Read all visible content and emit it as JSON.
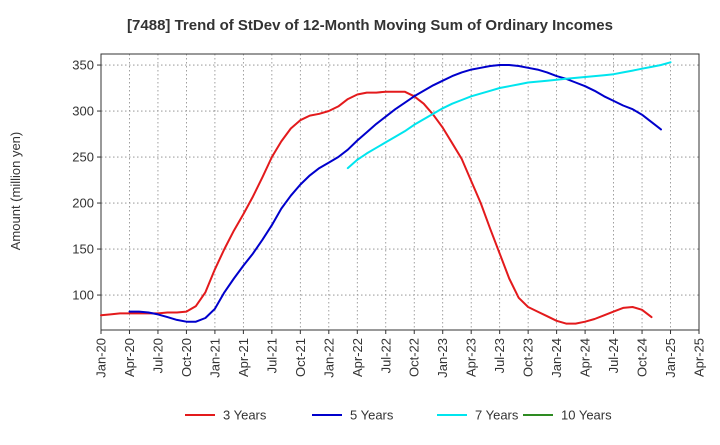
{
  "chart_data": {
    "type": "line",
    "title": "[7488]  Trend of StDev of 12-Month Moving Sum of Ordinary Incomes",
    "ylabel": "Amount (million yen)",
    "xlabel": "",
    "ylim": [
      62,
      362
    ],
    "yticks": [
      100,
      150,
      200,
      250,
      300,
      350
    ],
    "xlim": [
      "2020-01",
      "2025-04"
    ],
    "xticks": [
      "Jan-20",
      "Apr-20",
      "Jul-20",
      "Oct-20",
      "Jan-21",
      "Apr-21",
      "Jul-21",
      "Oct-21",
      "Jan-22",
      "Apr-22",
      "Jul-22",
      "Oct-22",
      "Jan-23",
      "Apr-23",
      "Jul-23",
      "Oct-23",
      "Jan-24",
      "Apr-24",
      "Jul-24",
      "Oct-24",
      "Jan-25",
      "Apr-25"
    ],
    "grid": true,
    "legend_position": "bottom",
    "series": [
      {
        "name": "3 Years",
        "color": "#e31a1c",
        "x": [
          "2020-01",
          "2020-02",
          "2020-03",
          "2020-04",
          "2020-05",
          "2020-06",
          "2020-07",
          "2020-08",
          "2020-09",
          "2020-10",
          "2020-11",
          "2020-12",
          "2021-01",
          "2021-02",
          "2021-03",
          "2021-04",
          "2021-05",
          "2021-06",
          "2021-07",
          "2021-08",
          "2021-09",
          "2021-10",
          "2021-11",
          "2021-12",
          "2022-01",
          "2022-02",
          "2022-03",
          "2022-04",
          "2022-05",
          "2022-06",
          "2022-07",
          "2022-08",
          "2022-09",
          "2022-10",
          "2022-11",
          "2022-12",
          "2023-01",
          "2023-02",
          "2023-03",
          "2023-04",
          "2023-05",
          "2023-06",
          "2023-07",
          "2023-08",
          "2023-09",
          "2023-10",
          "2023-11",
          "2023-12",
          "2024-01",
          "2024-02",
          "2024-03",
          "2024-04",
          "2024-05",
          "2024-06",
          "2024-07",
          "2024-08",
          "2024-09",
          "2024-10",
          "2024-11",
          "2024-12",
          "2025-01"
        ],
        "values": [
          78,
          79,
          80,
          80,
          80,
          80,
          80,
          81,
          81,
          82,
          88,
          103,
          128,
          150,
          170,
          188,
          207,
          228,
          250,
          267,
          281,
          290,
          295,
          297,
          300,
          305,
          313,
          318,
          320,
          320,
          321,
          321,
          321,
          316,
          308,
          296,
          282,
          265,
          248,
          224,
          200,
          172,
          145,
          118,
          97,
          87,
          82,
          77,
          72,
          69,
          69,
          71,
          74,
          78,
          82,
          86,
          87,
          84,
          76,
          null,
          null
        ],
        "values_note": "monthly samples from Jan-20 to Jan-25"
      },
      {
        "name": "5 Years",
        "color": "#0000cc",
        "x": [
          "2020-04",
          "2020-05",
          "2020-06",
          "2020-07",
          "2020-08",
          "2020-09",
          "2020-10",
          "2020-11",
          "2020-12",
          "2021-01",
          "2021-02",
          "2021-03",
          "2021-04",
          "2021-05",
          "2021-06",
          "2021-07",
          "2021-08",
          "2021-09",
          "2021-10",
          "2021-11",
          "2021-12",
          "2022-01",
          "2022-02",
          "2022-03",
          "2022-04",
          "2022-05",
          "2022-06",
          "2022-07",
          "2022-08",
          "2022-09",
          "2022-10",
          "2022-11",
          "2022-12",
          "2023-01",
          "2023-02",
          "2023-03",
          "2023-04",
          "2023-05",
          "2023-06",
          "2023-07",
          "2023-08",
          "2023-09",
          "2023-10",
          "2023-11",
          "2023-12",
          "2024-01",
          "2024-02",
          "2024-03",
          "2024-04",
          "2024-05",
          "2024-06",
          "2024-07",
          "2024-08",
          "2024-09",
          "2024-10",
          "2024-11",
          "2024-12",
          "2025-01"
        ],
        "values": [
          82,
          82,
          81,
          79,
          76,
          73,
          71,
          71,
          75,
          85,
          103,
          118,
          132,
          145,
          160,
          176,
          194,
          208,
          220,
          230,
          238,
          244,
          250,
          258,
          268,
          277,
          286,
          294,
          302,
          309,
          316,
          322,
          328,
          333,
          338,
          342,
          345,
          347,
          349,
          350,
          350,
          349,
          347,
          345,
          342,
          338,
          335,
          331,
          327,
          322,
          316,
          311,
          306,
          302,
          296,
          288,
          280,
          null
        ],
        "values_note": "monthly samples from Apr-20 to Jan-25"
      },
      {
        "name": "7 Years",
        "color": "#00e5ee",
        "x": [
          "2022-03",
          "2022-04",
          "2022-05",
          "2022-06",
          "2022-07",
          "2022-08",
          "2022-09",
          "2022-10",
          "2022-11",
          "2022-12",
          "2023-01",
          "2023-02",
          "2023-03",
          "2023-04",
          "2023-05",
          "2023-06",
          "2023-07",
          "2023-08",
          "2023-09",
          "2023-10",
          "2023-11",
          "2023-12",
          "2024-01",
          "2024-02",
          "2024-03",
          "2024-04",
          "2024-05",
          "2024-06",
          "2024-07",
          "2024-08",
          "2024-09",
          "2024-10",
          "2024-11",
          "2024-12",
          "2025-01"
        ],
        "values": [
          238,
          247,
          254,
          260,
          266,
          272,
          278,
          285,
          291,
          297,
          303,
          308,
          312,
          316,
          319,
          322,
          325,
          327,
          329,
          331,
          332,
          333,
          334,
          335,
          336,
          337,
          338,
          339,
          340,
          342,
          344,
          346,
          348,
          350,
          353
        ]
      },
      {
        "name": "10 Years",
        "color": "#2e8b22",
        "x": [],
        "values": []
      }
    ]
  }
}
